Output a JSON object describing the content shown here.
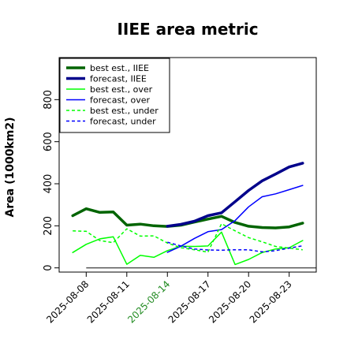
{
  "chart_data": {
    "type": "line",
    "title": "IIEE area metric",
    "xlabel": "",
    "ylabel": "Area (1000km2)",
    "ylim": [
      -20,
      1000
    ],
    "yticks": [
      0,
      200,
      400,
      600,
      800
    ],
    "xrange": [
      "2025-08-06",
      "2025-08-25"
    ],
    "xticks": [
      {
        "date": "2025-08-08",
        "label": "2025-08-08",
        "color": "#000000"
      },
      {
        "date": "2025-08-11",
        "label": "2025-08-11",
        "color": "#000000"
      },
      {
        "date": "2025-08-14",
        "label": "2025-08-14",
        "color": "#228B22"
      },
      {
        "date": "2025-08-17",
        "label": "2025-08-17",
        "color": "#000000"
      },
      {
        "date": "2025-08-20",
        "label": "2025-08-20",
        "color": "#000000"
      },
      {
        "date": "2025-08-23",
        "label": "2025-08-23",
        "color": "#000000"
      }
    ],
    "grid": false,
    "legend_position": "top-left",
    "baseline": {
      "y": 0,
      "from": "2025-08-08",
      "to": "2025-08-25",
      "color": "#555555"
    },
    "series": [
      {
        "name": "best est., IIEE",
        "color": "#006400",
        "style": "solid",
        "weight": "thick",
        "x": [
          "2025-08-07",
          "2025-08-08",
          "2025-08-09",
          "2025-08-10",
          "2025-08-11",
          "2025-08-12",
          "2025-08-13",
          "2025-08-14",
          "2025-08-15",
          "2025-08-16",
          "2025-08-17",
          "2025-08-18",
          "2025-08-19",
          "2025-08-20",
          "2025-08-21",
          "2025-08-22",
          "2025-08-23",
          "2025-08-24"
        ],
        "y": [
          248,
          281,
          264,
          266,
          203,
          208,
          200,
          197,
          203,
          218,
          232,
          245,
          216,
          198,
          192,
          190,
          195,
          213
        ]
      },
      {
        "name": "forecast, IIEE",
        "color": "#00008B",
        "style": "solid",
        "weight": "thick",
        "x": [
          "2025-08-14",
          "2025-08-15",
          "2025-08-16",
          "2025-08-17",
          "2025-08-18",
          "2025-08-19",
          "2025-08-20",
          "2025-08-21",
          "2025-08-22",
          "2025-08-23",
          "2025-08-24"
        ],
        "y": [
          198,
          207,
          222,
          248,
          262,
          315,
          368,
          414,
          446,
          480,
          498
        ]
      },
      {
        "name": "best est., over",
        "color": "#00FF00",
        "style": "solid",
        "weight": "thin",
        "x": [
          "2025-08-07",
          "2025-08-08",
          "2025-08-09",
          "2025-08-10",
          "2025-08-11",
          "2025-08-12",
          "2025-08-13",
          "2025-08-14",
          "2025-08-15",
          "2025-08-16",
          "2025-08-17",
          "2025-08-18",
          "2025-08-19",
          "2025-08-20",
          "2025-08-21",
          "2025-08-22",
          "2025-08-23",
          "2025-08-24"
        ],
        "y": [
          73,
          112,
          138,
          148,
          17,
          60,
          50,
          82,
          103,
          102,
          104,
          170,
          16,
          40,
          73,
          90,
          96,
          130
        ]
      },
      {
        "name": "forecast, over",
        "color": "#0000FF",
        "style": "solid",
        "weight": "thin",
        "x": [
          "2025-08-14",
          "2025-08-15",
          "2025-08-16",
          "2025-08-17",
          "2025-08-18",
          "2025-08-19",
          "2025-08-20",
          "2025-08-21",
          "2025-08-22",
          "2025-08-23",
          "2025-08-24"
        ],
        "y": [
          74,
          103,
          140,
          172,
          182,
          225,
          290,
          338,
          352,
          372,
          392
        ]
      },
      {
        "name": "best est., under",
        "color": "#00FF00",
        "style": "dashed",
        "weight": "thin",
        "x": [
          "2025-08-07",
          "2025-08-08",
          "2025-08-09",
          "2025-08-10",
          "2025-08-11",
          "2025-08-12",
          "2025-08-13",
          "2025-08-14",
          "2025-08-15",
          "2025-08-16",
          "2025-08-17",
          "2025-08-18",
          "2025-08-19",
          "2025-08-20",
          "2025-08-21",
          "2025-08-22",
          "2025-08-23",
          "2025-08-24"
        ],
        "y": [
          176,
          174,
          130,
          120,
          186,
          151,
          152,
          118,
          96,
          86,
          75,
          210,
          176,
          144,
          124,
          102,
          94,
          86
        ]
      },
      {
        "name": "forecast, under",
        "color": "#0000FF",
        "style": "dashed",
        "weight": "thin",
        "x": [
          "2025-08-14",
          "2025-08-15",
          "2025-08-16",
          "2025-08-17",
          "2025-08-18",
          "2025-08-19",
          "2025-08-20",
          "2025-08-21",
          "2025-08-22",
          "2025-08-23",
          "2025-08-24"
        ],
        "y": [
          122,
          104,
          90,
          85,
          84,
          86,
          86,
          76,
          82,
          94,
          105
        ]
      }
    ]
  }
}
